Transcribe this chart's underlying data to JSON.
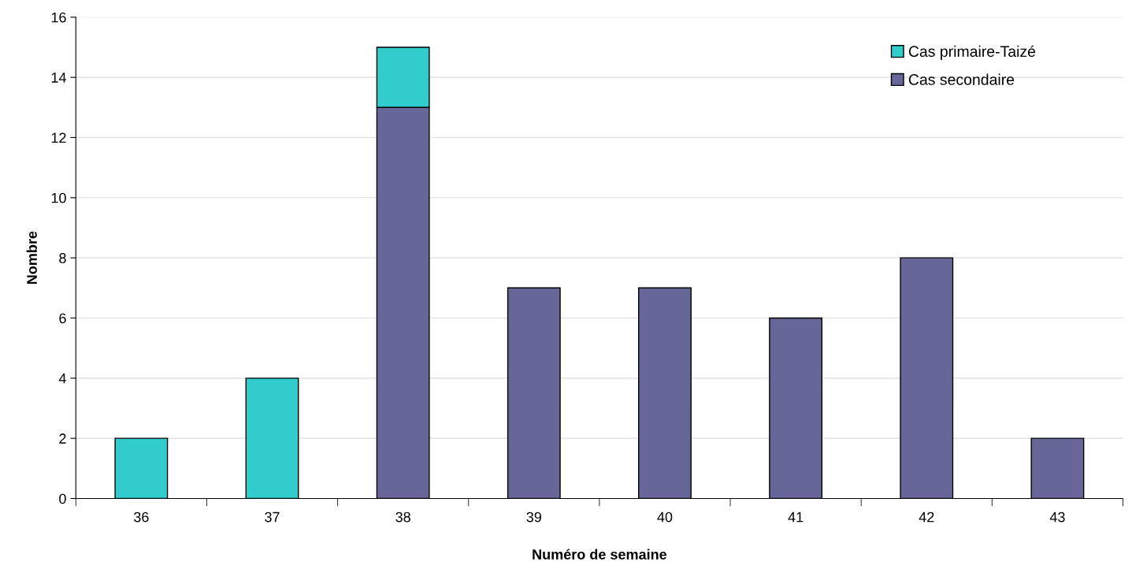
{
  "chart_data": {
    "type": "bar",
    "stacked": true,
    "xlabel": "Numéro de semaine",
    "ylabel": "Nombre",
    "categories": [
      "36",
      "37",
      "38",
      "39",
      "40",
      "41",
      "42",
      "43"
    ],
    "series": [
      {
        "name": "Cas secondaire",
        "color": "#666699",
        "values": [
          null,
          null,
          13,
          7,
          7,
          6,
          8,
          2
        ]
      },
      {
        "name": "Cas primaire-Taizé",
        "color": "#33cccc",
        "values": [
          2,
          4,
          2,
          null,
          null,
          null,
          null,
          null
        ]
      }
    ],
    "ylim": [
      0,
      16
    ],
    "yticks": [
      0,
      2,
      4,
      6,
      8,
      10,
      12,
      14,
      16
    ],
    "grid": "y",
    "legend": "top right"
  }
}
